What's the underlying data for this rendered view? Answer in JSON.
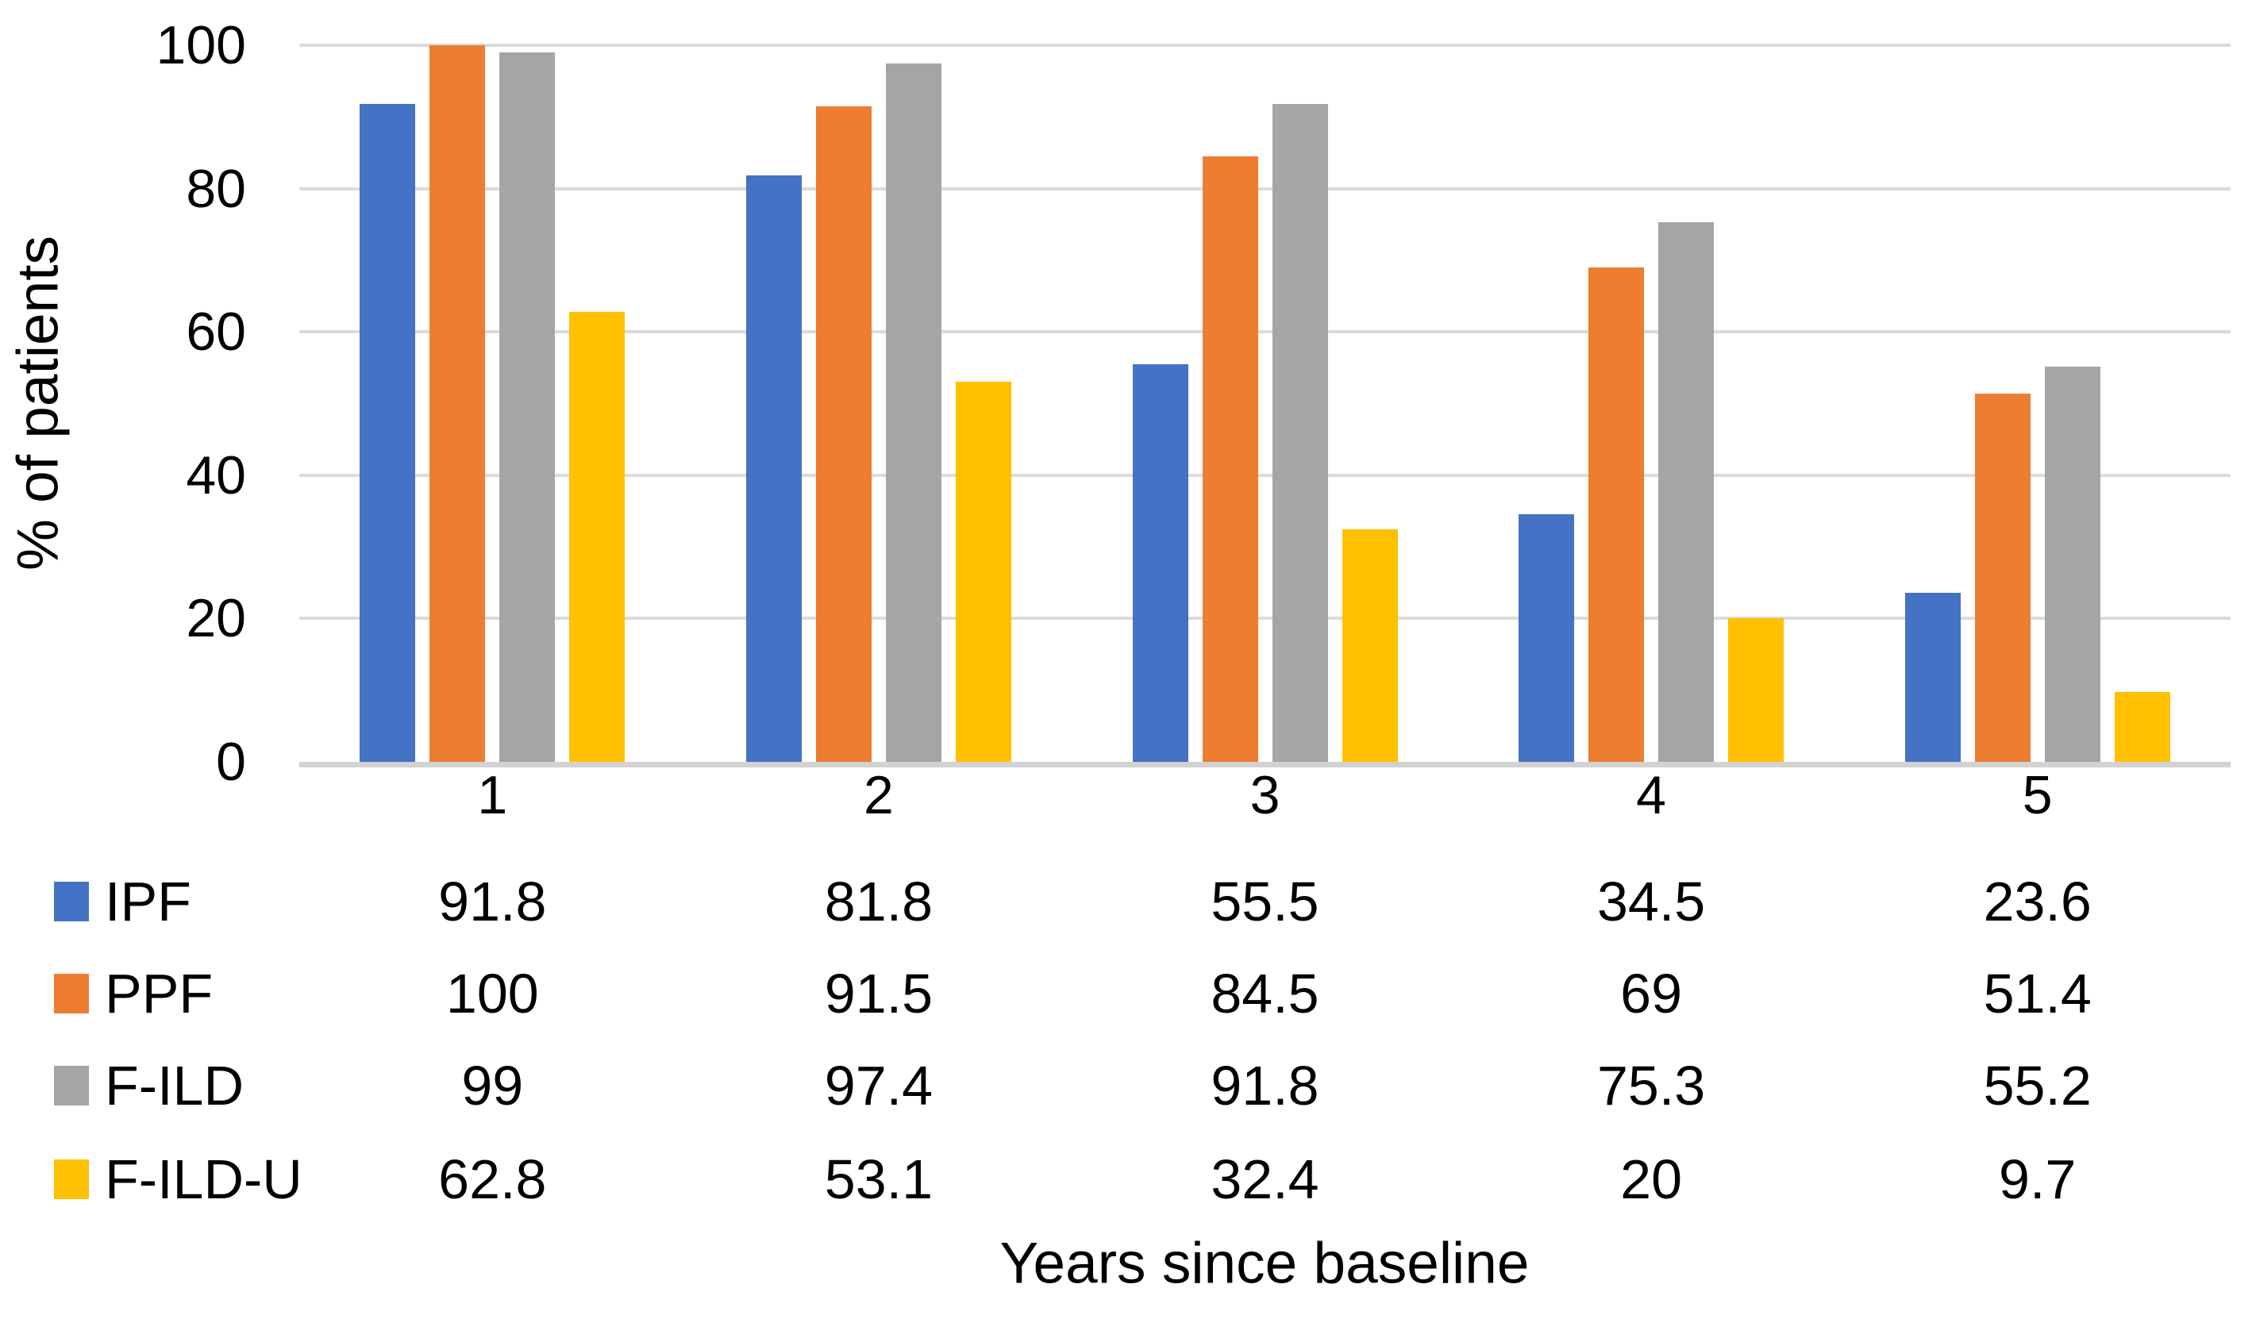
{
  "chart_data": {
    "type": "bar",
    "title": "",
    "categories": [
      "1",
      "2",
      "3",
      "4",
      "5"
    ],
    "series": [
      {
        "name": "IPF",
        "color": "#4472C4",
        "values": [
          91.8,
          81.8,
          55.5,
          34.5,
          23.6
        ]
      },
      {
        "name": "PPF",
        "color": "#ED7D31",
        "values": [
          100,
          91.5,
          84.5,
          69,
          51.4
        ]
      },
      {
        "name": "F-ILD",
        "color": "#A5A5A5",
        "values": [
          99,
          97.4,
          91.8,
          75.3,
          55.2
        ]
      },
      {
        "name": "F-ILD-U",
        "color": "#FFC000",
        "values": [
          62.8,
          53.1,
          32.4,
          20,
          9.7
        ]
      }
    ],
    "xlabel": "Years since baseline",
    "ylabel": "% of patients",
    "ylim": [
      0,
      100
    ],
    "yticks": [
      0,
      20,
      40,
      60,
      80,
      100
    ],
    "grid": true,
    "gridline_color": "#DBDBDB",
    "axis_line_color": "#D2D2D2",
    "legend_position": "data-table-below-left"
  }
}
